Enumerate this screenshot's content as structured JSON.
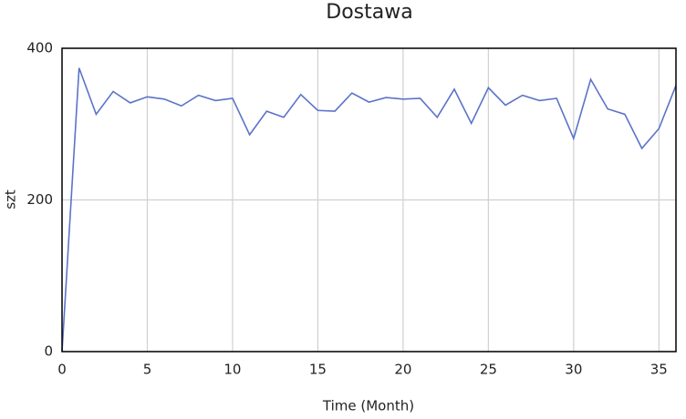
{
  "chart_data": {
    "type": "line",
    "title": "Dostawa",
    "x_label": "Time (Month)",
    "y_label": "szt",
    "x": [
      0,
      1,
      2,
      3,
      4,
      5,
      6,
      7,
      8,
      9,
      10,
      11,
      12,
      13,
      14,
      15,
      16,
      17,
      18,
      19,
      20,
      21,
      22,
      23,
      24,
      25,
      26,
      27,
      28,
      29,
      30,
      31,
      32,
      33,
      34,
      35,
      36
    ],
    "series": [
      {
        "name": "Dostawa",
        "color": "#5b73c8",
        "values": [
          0,
          374,
          313,
          343,
          328,
          336,
          333,
          324,
          338,
          331,
          334,
          286,
          317,
          309,
          339,
          318,
          317,
          341,
          329,
          335,
          333,
          334,
          309,
          346,
          301,
          348,
          325,
          338,
          331,
          334,
          281,
          359,
          320,
          313,
          268,
          294,
          351
        ]
      }
    ],
    "xlim": [
      0,
      36
    ],
    "xticks": [
      0,
      5,
      10,
      15,
      20,
      25,
      30,
      35
    ],
    "ylim": [
      0,
      400
    ],
    "yticks": [
      0,
      200,
      400
    ],
    "grid": true
  }
}
